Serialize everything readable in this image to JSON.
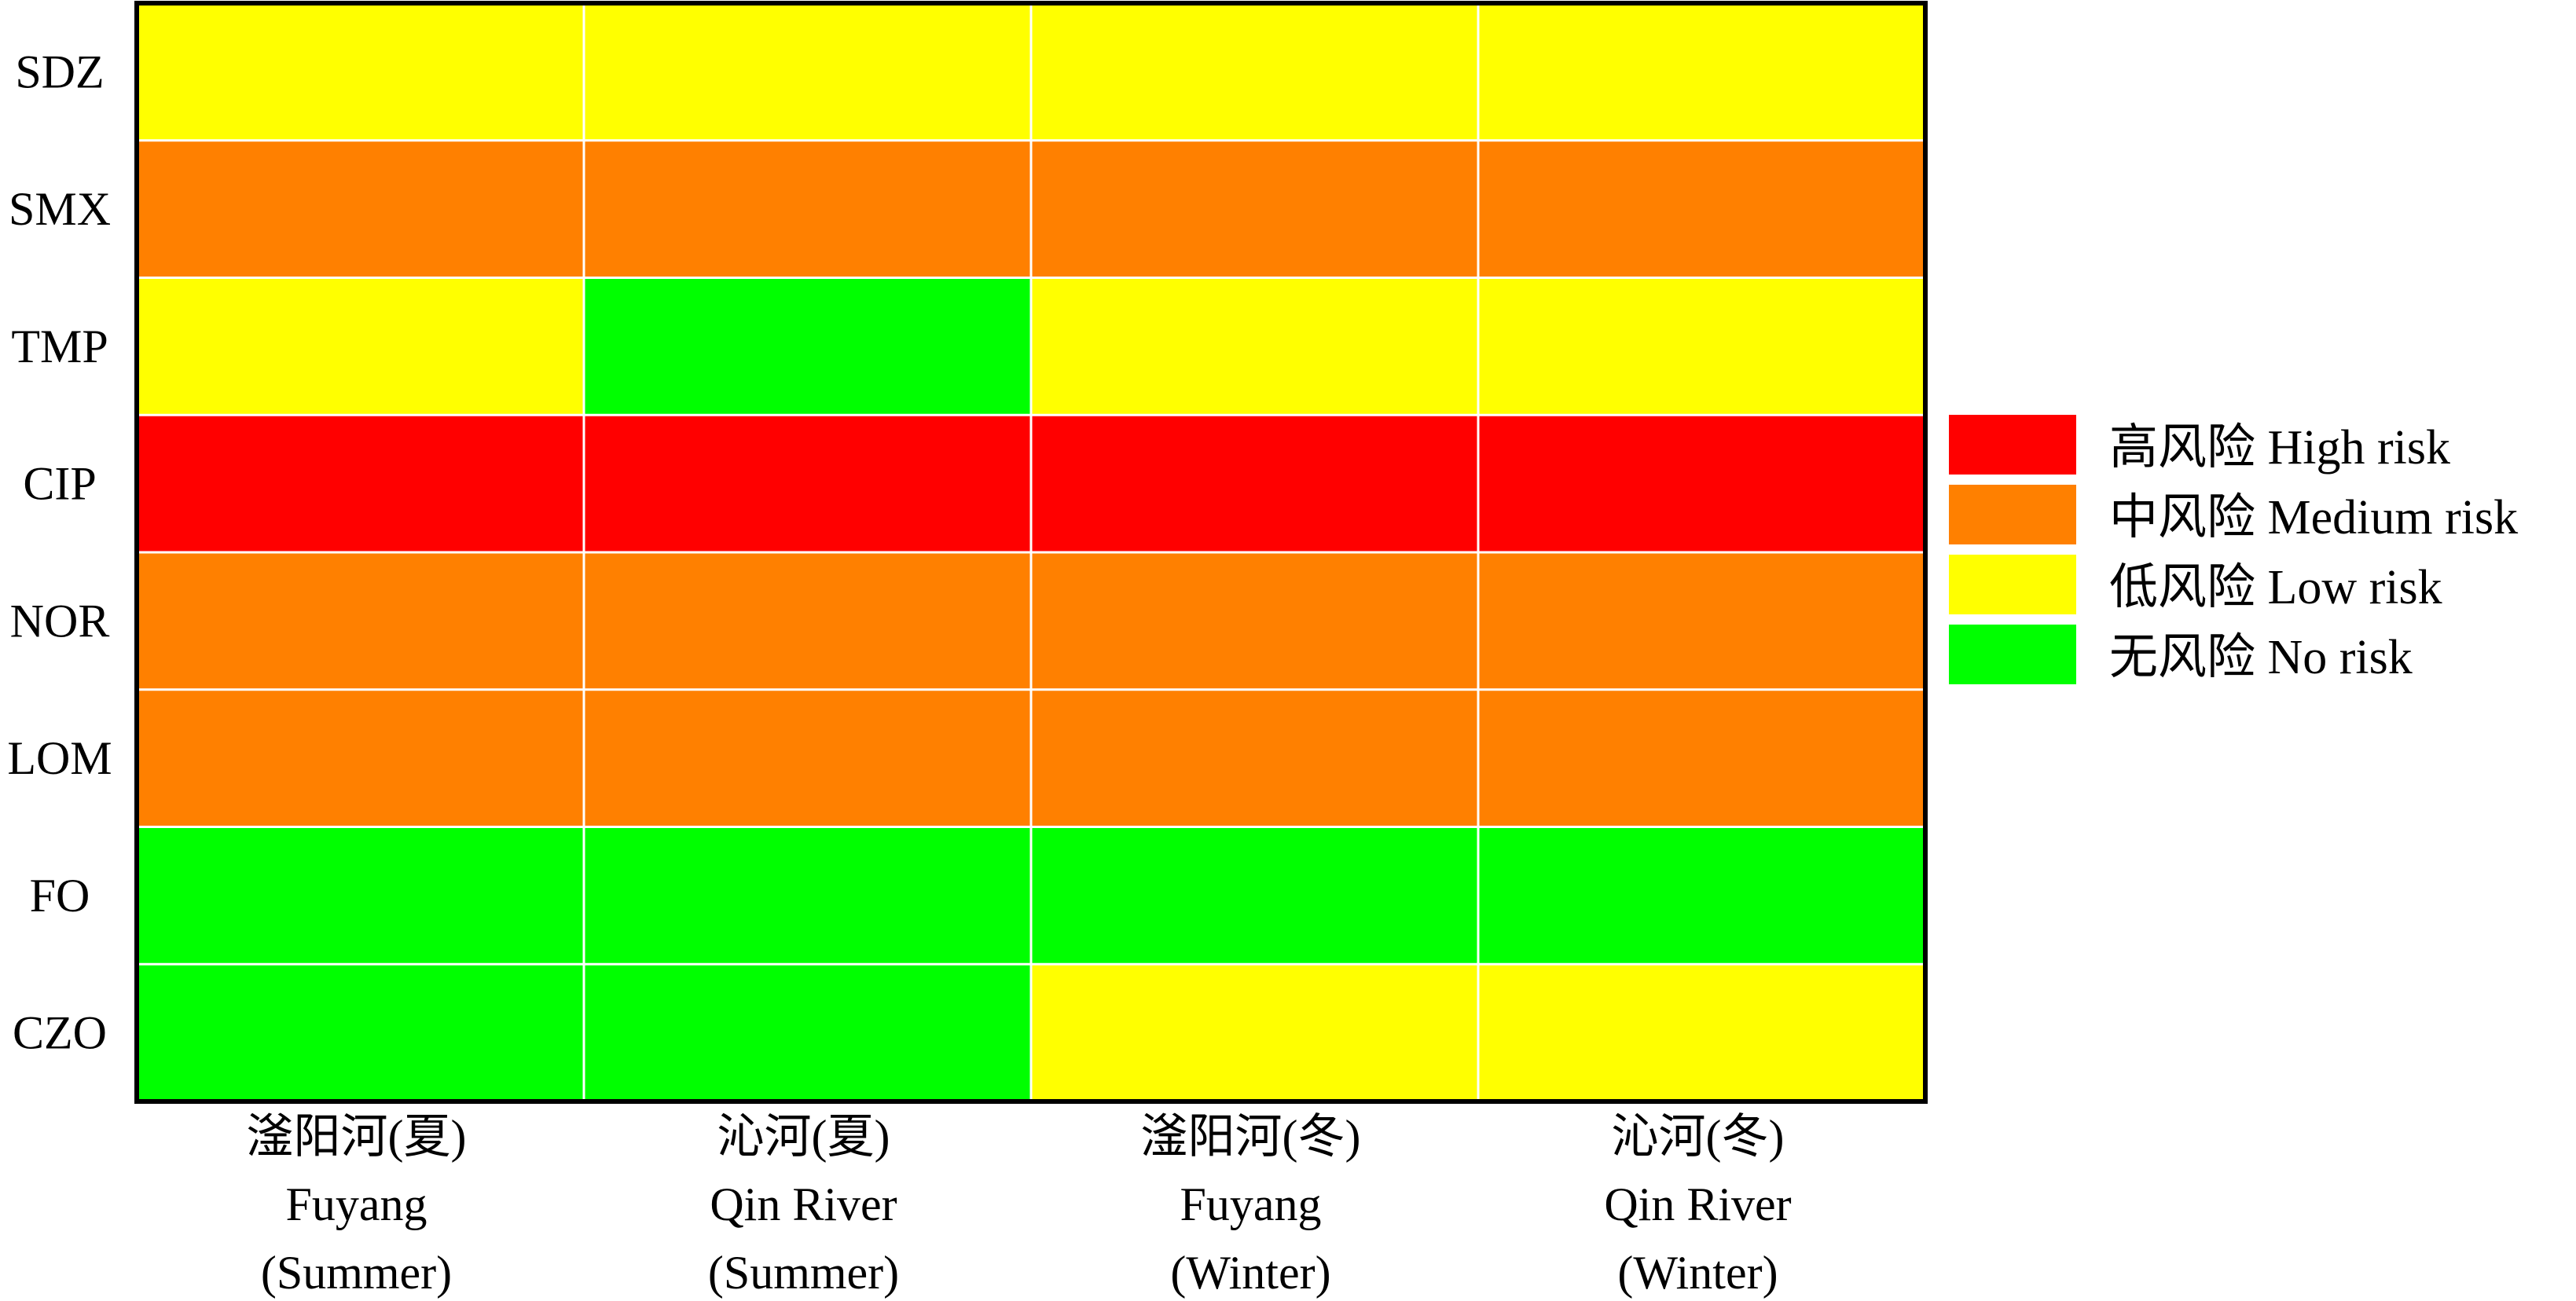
{
  "chart_data": {
    "type": "heatmap",
    "rows": [
      "SDZ",
      "SMX",
      "TMP",
      "CIP",
      "NOR",
      "LOM",
      "FO",
      "CZO"
    ],
    "columns": [
      {
        "lines": [
          "滏阳河(夏)",
          "Fuyang",
          "(Summer)"
        ]
      },
      {
        "lines": [
          "沁河(夏)",
          "Qin River",
          "(Summer)"
        ]
      },
      {
        "lines": [
          "滏阳河(冬)",
          "Fuyang",
          "(Winter)"
        ]
      },
      {
        "lines": [
          "沁河(冬)",
          "Qin River",
          "(Winter)"
        ]
      }
    ],
    "values": [
      [
        "low",
        "low",
        "low",
        "low"
      ],
      [
        "medium",
        "medium",
        "medium",
        "medium"
      ],
      [
        "low",
        "none",
        "low",
        "low"
      ],
      [
        "high",
        "high",
        "high",
        "high"
      ],
      [
        "medium",
        "medium",
        "medium",
        "medium"
      ],
      [
        "medium",
        "medium",
        "medium",
        "medium"
      ],
      [
        "none",
        "none",
        "none",
        "none"
      ],
      [
        "none",
        "none",
        "low",
        "low"
      ]
    ],
    "categories": [
      {
        "key": "high",
        "label": "高风险 High risk",
        "color": "#ff0000"
      },
      {
        "key": "medium",
        "label": "中风险 Medium risk",
        "color": "#ff8000"
      },
      {
        "key": "low",
        "label": "低风险 Low risk",
        "color": "#ffff00"
      },
      {
        "key": "none",
        "label": "无风险 No risk",
        "color": "#00ff00"
      }
    ],
    "legend_position": "right"
  }
}
